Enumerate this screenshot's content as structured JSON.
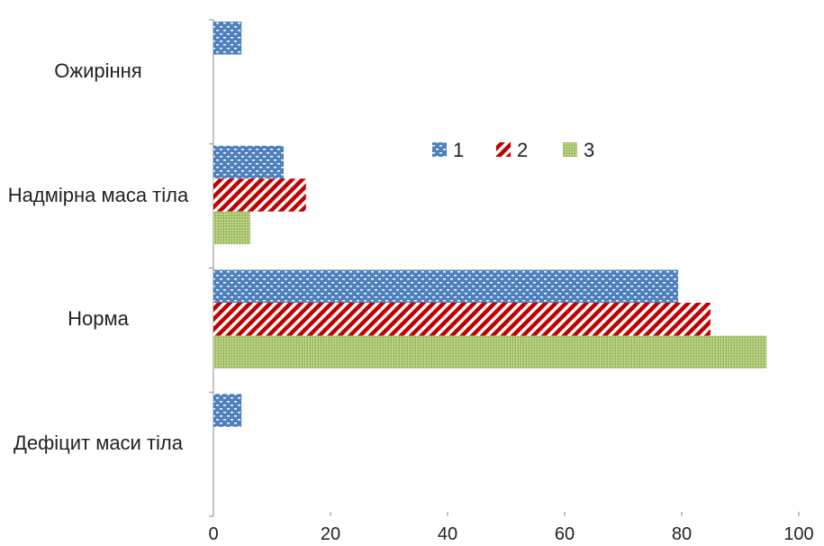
{
  "chart_data": {
    "type": "bar",
    "orientation": "horizontal",
    "categories": [
      "Дефіцит маси тіла",
      "Норма",
      "Надмірна маса тіла",
      "Ожиріння"
    ],
    "series": [
      {
        "name": "1",
        "color": "#4f81bd",
        "pattern": "dots",
        "values": [
          4.8,
          79.4,
          12,
          4.8
        ]
      },
      {
        "name": "2",
        "color": "#c00000",
        "pattern": "stripes",
        "values": [
          0,
          84.9,
          15.8,
          0
        ]
      },
      {
        "name": "3",
        "color": "#9bbb59",
        "pattern": "check",
        "values": [
          0,
          94.5,
          6.3,
          0
        ]
      }
    ],
    "xlim": [
      0,
      100
    ],
    "xticks": [
      0,
      20,
      40,
      60,
      80,
      100
    ],
    "grid": false
  }
}
